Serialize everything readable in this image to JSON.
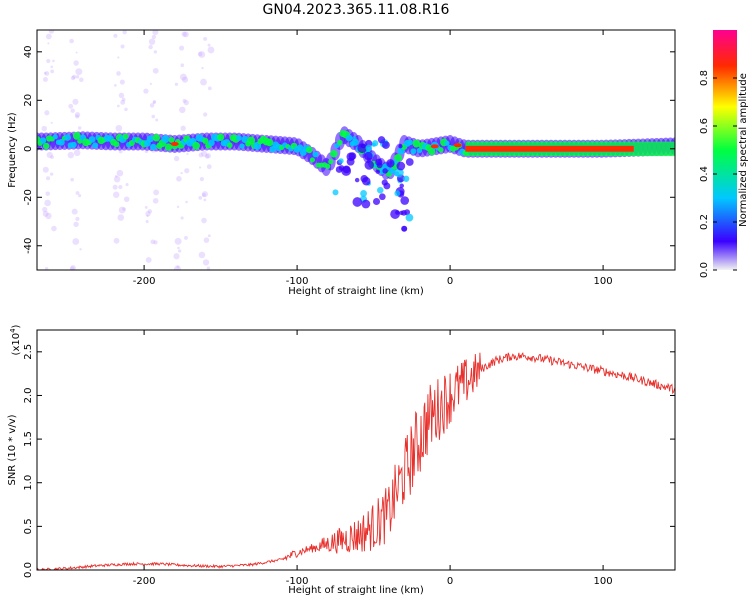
{
  "title": "GN04.2023.365.11.08.R16",
  "chart_data": [
    {
      "type": "heatmap",
      "xlabel": "Height of straight line (km)",
      "ylabel": "Frequency (Hz)",
      "xlim": [
        -270,
        147
      ],
      "ylim": [
        -50,
        49
      ],
      "xticks": [
        -200,
        -100,
        0,
        100
      ],
      "yticks": [
        -40,
        -20,
        0,
        20,
        40
      ],
      "colorbar": {
        "label": "Normalized spectral amplitude",
        "ticks": [
          "0.0",
          "0.2",
          "0.4",
          "0.6",
          "0.8"
        ],
        "tick_values": [
          0.0,
          0.2,
          0.4,
          0.6,
          0.8
        ],
        "range": [
          0,
          1
        ],
        "colors": [
          "#f2f2f2",
          "#3a00ff",
          "#00c8ff",
          "#00ff40",
          "#ffff00",
          "#ff2a00",
          "#ff0090"
        ]
      },
      "trace": {
        "x": [
          -265,
          -240,
          -220,
          -200,
          -180,
          -160,
          -140,
          -120,
          -100,
          -90,
          -80,
          -70,
          -60,
          -50,
          -40,
          -30,
          -20,
          -10,
          0,
          10,
          50,
          100,
          147
        ],
        "y": [
          3,
          3.5,
          3,
          3,
          2,
          3,
          3,
          2,
          1,
          -3,
          -8,
          6,
          2,
          -5,
          -10,
          2,
          0,
          1,
          2,
          0,
          0,
          0,
          1
        ]
      }
    },
    {
      "type": "line",
      "xlabel": "Height of straight line (km)",
      "ylabel": "SNR (10 * v/v)",
      "multiplier": "(x10",
      "multiplier_exp": "4",
      "xlim": [
        -270,
        147
      ],
      "ylim": [
        0,
        2.75
      ],
      "xticks": [
        -200,
        -100,
        0,
        100
      ],
      "yticks": [
        "0.0",
        "0.5",
        "1.0",
        "1.5",
        "2.0",
        "2.5"
      ],
      "ytick_values": [
        0.0,
        0.5,
        1.0,
        1.5,
        2.0,
        2.5
      ],
      "series": [
        {
          "color": "#e8302c",
          "x": [
            -270,
            -250,
            -230,
            -210,
            -190,
            -170,
            -150,
            -130,
            -110,
            -100,
            -90,
            -80,
            -70,
            -60,
            -50,
            -40,
            -35,
            -30,
            -25,
            -20,
            -15,
            -10,
            -5,
            0,
            10,
            20,
            30,
            40,
            50,
            60,
            80,
            100,
            120,
            140,
            147
          ],
          "y": [
            0.0,
            0.02,
            0.05,
            0.07,
            0.07,
            0.05,
            0.04,
            0.06,
            0.12,
            0.2,
            0.25,
            0.3,
            0.35,
            0.4,
            0.5,
            0.65,
            0.9,
            1.1,
            1.3,
            1.5,
            1.7,
            1.8,
            1.9,
            2.0,
            2.15,
            2.3,
            2.4,
            2.45,
            2.45,
            2.42,
            2.35,
            2.28,
            2.2,
            2.1,
            2.07
          ]
        }
      ]
    }
  ]
}
